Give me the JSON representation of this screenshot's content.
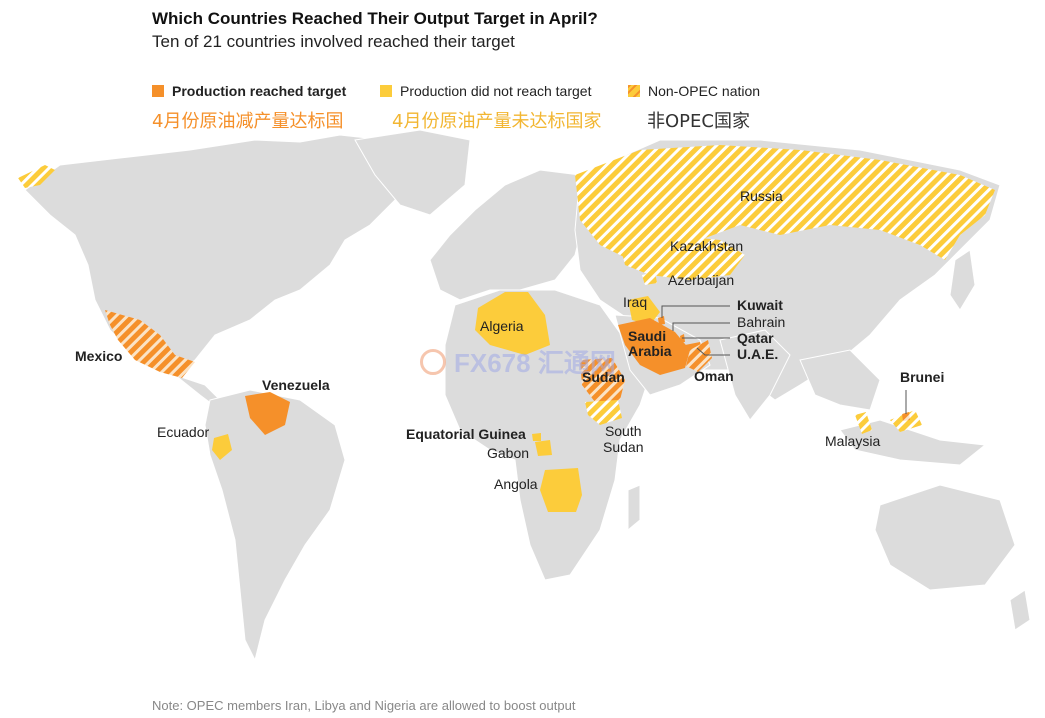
{
  "title": "Which Countries Reached Their Output Target in April?",
  "subtitle": "Ten of 21 countries involved reached their target",
  "legend": {
    "reached": "Production reached target",
    "not_reached": "Production did not reach target",
    "non_opec": "Non-OPEC nation",
    "reached_cn": "4月份原油减产量达标国",
    "not_reached_cn": "4月份原油产量未达标国家",
    "non_opec_cn": "非OPEC国家"
  },
  "colors": {
    "reached": "#f5902a",
    "not_reached": "#fccc3b",
    "land": "#dcdcdc",
    "ocean": "#ffffff"
  },
  "countries": {
    "russia": "Russia",
    "kazakhstan": "Kazakhstan",
    "azerbaijan": "Azerbaijan",
    "iraq": "Iraq",
    "kuwait": "Kuwait",
    "bahrain": "Bahrain",
    "qatar": "Qatar",
    "uae": "U.A.E.",
    "saudi_arabia": "Saudi\nArabia",
    "oman": "Oman",
    "algeria": "Algeria",
    "sudan": "Sudan",
    "south_sudan": "South\nSudan",
    "mexico": "Mexico",
    "venezuela": "Venezuela",
    "ecuador": "Ecuador",
    "equatorial_guinea": "Equatorial Guinea",
    "gabon": "Gabon",
    "angola": "Angola",
    "brunei": "Brunei",
    "malaysia": "Malaysia"
  },
  "watermark": "FX678 汇通网",
  "note": "Note: OPEC members Iran, Libya and Nigeria are allowed to boost output"
}
